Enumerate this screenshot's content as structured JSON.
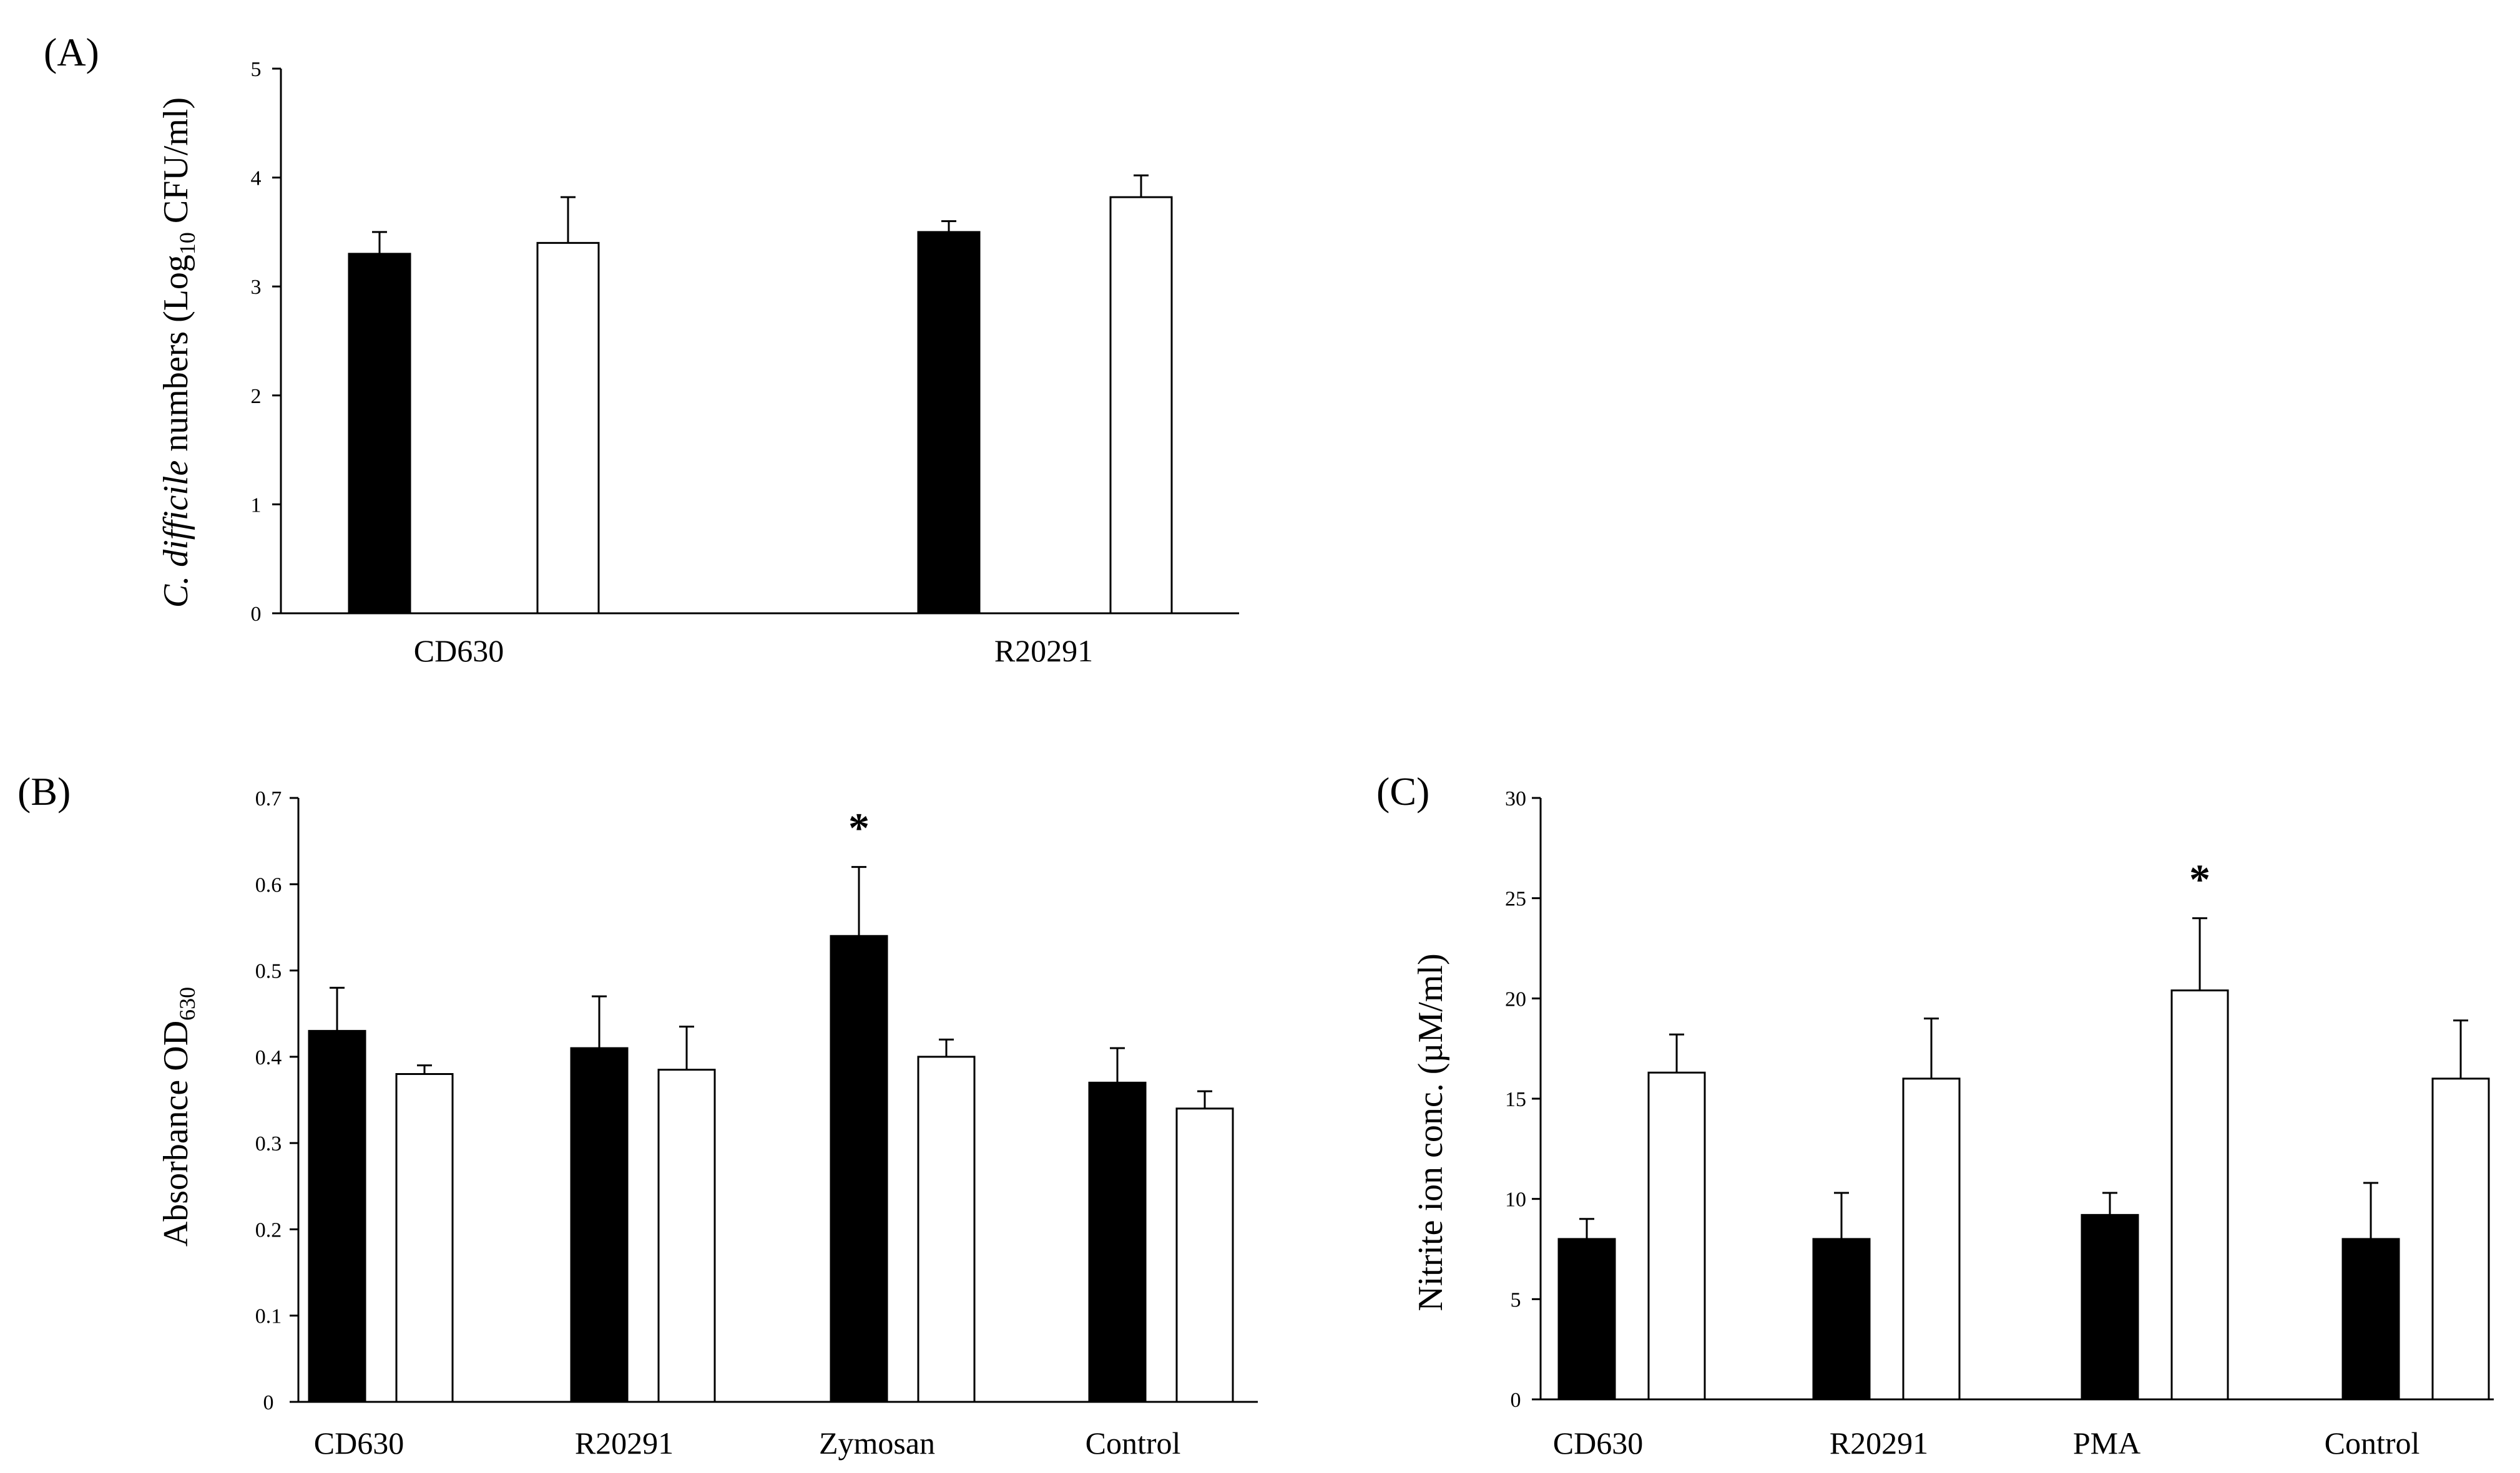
{
  "figure": {
    "background": "#ffffff",
    "bar_colors": {
      "filled": "#000000",
      "open": "#ffffff"
    }
  },
  "panels": [
    {
      "id": "A",
      "panel_label": "(A)",
      "ylabel_parts": {
        "italic": "C. difficile",
        "text": " numbers (Log",
        "sub": "10",
        "tail": " CFU/ml)"
      }
    },
    {
      "id": "B",
      "panel_label": "(B)",
      "ylabel_parts": {
        "text": "Absorbance  OD",
        "sub": "630",
        "tail": ""
      }
    },
    {
      "id": "C",
      "panel_label": "(C)",
      "ylabel_parts": {
        "text": "Nitrite ion conc.  (µM/ml)",
        "sub": "",
        "tail": ""
      }
    }
  ],
  "chart_data": [
    {
      "type": "bar",
      "panel": "A",
      "title": "",
      "xlabel": "",
      "ylabel": "C. difficile numbers (Log10 CFU/ml)",
      "ylim": [
        0,
        5
      ],
      "yticks": [
        0,
        1,
        2,
        3,
        4,
        5
      ],
      "ytick_labels": [
        "0",
        "1",
        "2",
        "3",
        "4",
        "5"
      ],
      "grid": false,
      "categories": [
        "CD630",
        "R20291"
      ],
      "series": [
        {
          "name": "filled",
          "color": "#000000",
          "values": [
            3.3,
            3.5
          ],
          "errors": [
            0.2,
            0.1
          ]
        },
        {
          "name": "open",
          "color": "#ffffff",
          "values": [
            3.4,
            3.82
          ],
          "errors": [
            0.42,
            0.2
          ]
        }
      ],
      "annotations": []
    },
    {
      "type": "bar",
      "panel": "B",
      "title": "",
      "xlabel": "",
      "ylabel": "Absorbance OD630",
      "ylim": [
        0,
        0.7
      ],
      "yticks": [
        0,
        0.1,
        0.2,
        0.3,
        0.4,
        0.5,
        0.6,
        0.7
      ],
      "ytick_labels": [
        "0",
        "0.1",
        "0.2",
        "0.3",
        "0.4",
        "0.5",
        "0.6",
        "0.7"
      ],
      "grid": false,
      "categories": [
        "CD630",
        "R20291",
        "Zymosan",
        "Control"
      ],
      "series": [
        {
          "name": "filled",
          "color": "#000000",
          "values": [
            0.43,
            0.41,
            0.54,
            0.37
          ],
          "errors": [
            0.05,
            0.06,
            0.08,
            0.04
          ]
        },
        {
          "name": "open",
          "color": "#ffffff",
          "values": [
            0.38,
            0.385,
            0.4,
            0.34
          ],
          "errors": [
            0.01,
            0.05,
            0.02,
            0.02
          ]
        }
      ],
      "annotations": [
        {
          "text": "*",
          "category_index": 2,
          "series_index": 0
        }
      ]
    },
    {
      "type": "bar",
      "panel": "C",
      "title": "",
      "xlabel": "",
      "ylabel": "Nitrite ion conc. (µM/ml)",
      "ylim": [
        0,
        30
      ],
      "yticks": [
        0,
        5,
        10,
        15,
        20,
        25,
        30
      ],
      "ytick_labels": [
        "0",
        "5",
        "10",
        "15",
        "20",
        "25",
        "30"
      ],
      "grid": false,
      "categories": [
        "CD630",
        "R20291",
        "PMA",
        "Control"
      ],
      "series": [
        {
          "name": "filled",
          "color": "#000000",
          "values": [
            8,
            8,
            9.2,
            8
          ],
          "errors": [
            1,
            2.3,
            1.1,
            2.8
          ]
        },
        {
          "name": "open",
          "color": "#ffffff",
          "values": [
            16.3,
            16,
            20.4,
            16
          ],
          "errors": [
            1.9,
            3,
            3.6,
            2.9
          ]
        }
      ],
      "annotations": [
        {
          "text": "*",
          "category_index": 2,
          "series_index": 1
        }
      ]
    }
  ]
}
